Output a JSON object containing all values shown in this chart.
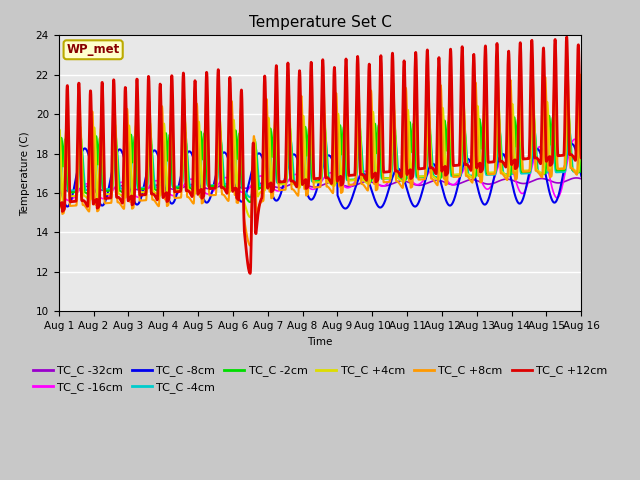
{
  "title": "Temperature Set C",
  "xlabel": "Time",
  "ylabel": "Temperature (C)",
  "ylim": [
    10,
    24
  ],
  "xlim": [
    0,
    15
  ],
  "fig_bg": "#c8c8c8",
  "plot_bg": "#e8e8e8",
  "series_order": [
    "TC_C -32cm",
    "TC_C -16cm",
    "TC_C -8cm",
    "TC_C -4cm",
    "TC_C -2cm",
    "TC_C +4cm",
    "TC_C +8cm",
    "TC_C +12cm"
  ],
  "series_colors": {
    "TC_C -32cm": "#9900cc",
    "TC_C -16cm": "#ff00ff",
    "TC_C -8cm": "#0000ee",
    "TC_C -4cm": "#00cccc",
    "TC_C -2cm": "#00dd00",
    "TC_C +4cm": "#dddd00",
    "TC_C +8cm": "#ff9900",
    "TC_C +12cm": "#dd0000"
  },
  "series_lw": {
    "TC_C -32cm": 1.2,
    "TC_C -16cm": 1.2,
    "TC_C -8cm": 1.5,
    "TC_C -4cm": 1.5,
    "TC_C -2cm": 1.5,
    "TC_C +4cm": 1.5,
    "TC_C +8cm": 1.5,
    "TC_C +12cm": 2.0
  },
  "xtick_labels": [
    "Aug 1",
    "Aug 2",
    "Aug 3",
    "Aug 4",
    "Aug 5",
    "Aug 6",
    "Aug 7",
    "Aug 8",
    "Aug 9",
    "Aug 10",
    "Aug 11",
    "Aug 12",
    "Aug 13",
    "Aug 14",
    "Aug 15",
    "Aug 16"
  ],
  "xtick_positions": [
    0,
    1,
    2,
    3,
    4,
    5,
    6,
    7,
    8,
    9,
    10,
    11,
    12,
    13,
    14,
    15
  ],
  "ytick_positions": [
    10,
    12,
    14,
    16,
    18,
    20,
    22,
    24
  ],
  "wp_met_label": "WP_met",
  "legend_fontsize": 8,
  "tick_fontsize": 7.5,
  "title_fontsize": 11,
  "figsize": [
    6.4,
    4.8
  ],
  "dpi": 100
}
